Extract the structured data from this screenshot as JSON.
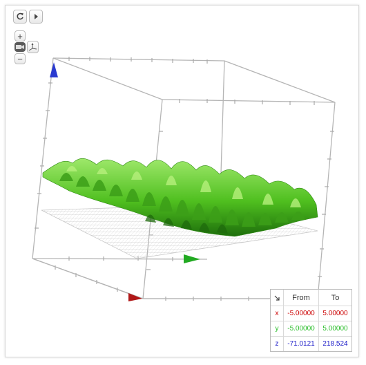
{
  "toolbar": {
    "reset_icon": "reset-icon",
    "play_icon": "play-icon",
    "zoom_in_label": "+",
    "zoom_out_label": "−",
    "camera_icon": "camera-icon",
    "axes_icon": "axes-orientation-icon"
  },
  "range_table": {
    "corner_icon": "arrow-down-right-icon",
    "headers": {
      "from": "From",
      "to": "To"
    },
    "rows": [
      {
        "axis": "x",
        "from": "-5.00000",
        "to": "5.00000",
        "color": "#cc0000"
      },
      {
        "axis": "y",
        "from": "-5.00000",
        "to": "5.00000",
        "color": "#22bb22"
      },
      {
        "axis": "z",
        "from": "-71.0121",
        "to": "218.524",
        "color": "#1a1ac8"
      }
    ]
  },
  "plot": {
    "surface_color": "#4fbf1f",
    "axis_arrow_colors": {
      "x": "#b01818",
      "y": "#22aa22",
      "z": "#2a3ad0"
    }
  }
}
